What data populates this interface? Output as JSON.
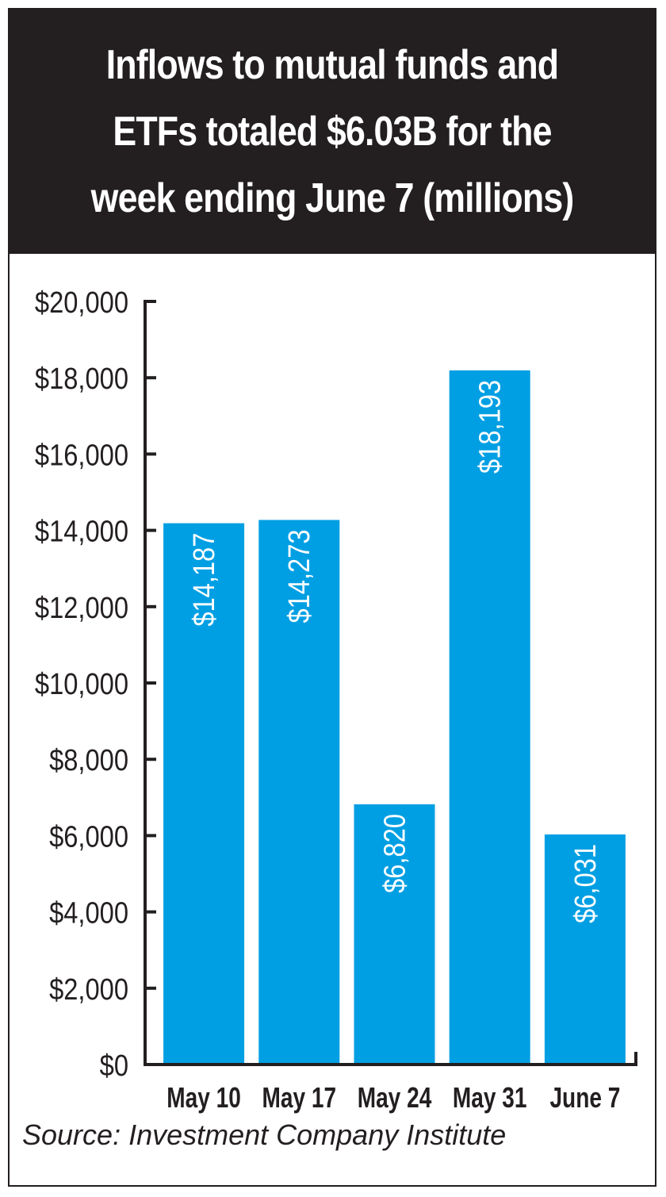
{
  "chart_data": {
    "type": "bar",
    "title": "Inflows to mutual funds and ETFs totaled $6.03B for the week ending June 7 (millions)",
    "categories": [
      "May 10",
      "May 17",
      "May 24",
      "May 31",
      "June 7"
    ],
    "values": [
      14187,
      14273,
      6820,
      18193,
      6031
    ],
    "value_labels": [
      "$14,187",
      "$14,273",
      "$6,820",
      "$18,193",
      "$6,031"
    ],
    "yticks": [
      0,
      2000,
      4000,
      6000,
      8000,
      10000,
      12000,
      14000,
      16000,
      18000,
      20000
    ],
    "ytick_labels": [
      "$0",
      "$2,000",
      "$4,000",
      "$6,000",
      "$8,000",
      "$10,000",
      "$12,000",
      "$14,000",
      "$16,000",
      "$18,000",
      "$20,000"
    ],
    "ylim": [
      0,
      20000
    ],
    "xlabel": "",
    "ylabel": "",
    "grid": false,
    "bar_color": "#009fe3",
    "label_color": "#ffffff"
  },
  "source": "Source: Investment Company Institute",
  "colors": {
    "header_bg": "#231f20",
    "axis": "#231f20"
  }
}
